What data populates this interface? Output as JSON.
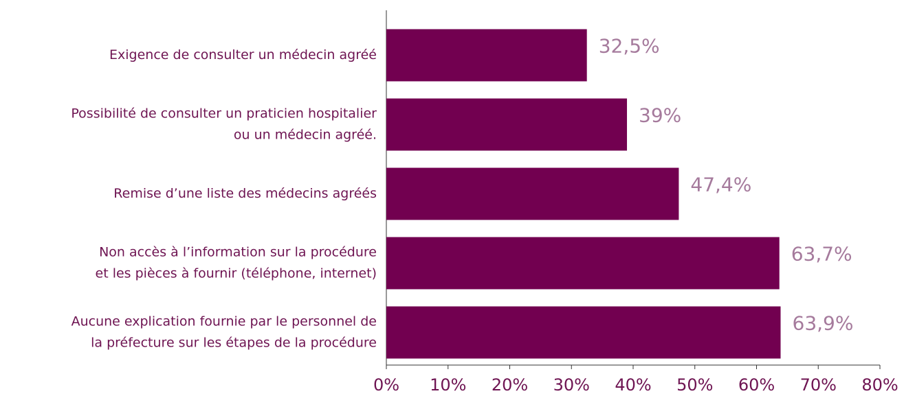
{
  "chart_data": {
    "type": "bar",
    "orientation": "horizontal",
    "categories": [
      [
        "Exigence de consulter un médecin agréé"
      ],
      [
        "Possibilité de consulter un praticien hospitalier",
        "ou un médecin agréé."
      ],
      [
        "Remise d’une liste des médecins agréés"
      ],
      [
        "Non accès à l’information sur la procédure",
        "et les pièces à fournir (téléphone, internet)"
      ],
      [
        "Aucune explication fournie par le personnel de",
        "la préfecture sur les étapes de la procédure"
      ]
    ],
    "values": [
      32.5,
      39,
      47.4,
      63.7,
      63.9
    ],
    "value_labels": [
      "32,5%",
      "39%",
      "47,4%",
      "63,7%",
      "63,9%"
    ],
    "color": "#720050",
    "xlim": [
      0,
      80
    ],
    "xticks": [
      {
        "value": 0,
        "label": "0%"
      },
      {
        "value": 10,
        "label": "10%"
      },
      {
        "value": 20,
        "label": "20%"
      },
      {
        "value": 30,
        "label": "30%"
      },
      {
        "value": 40,
        "label": "40%"
      },
      {
        "value": 50,
        "label": "50%"
      },
      {
        "value": 60,
        "label": "60%"
      },
      {
        "value": 70,
        "label": "70%"
      },
      {
        "value": 80,
        "label": "80%"
      }
    ]
  }
}
